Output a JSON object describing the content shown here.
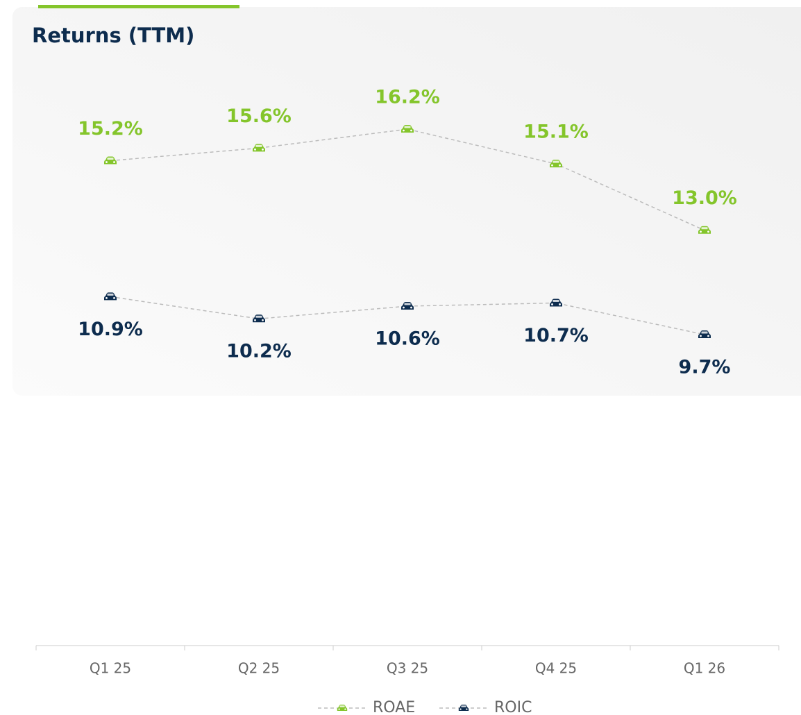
{
  "chart_data": {
    "type": "line",
    "title": "Returns (TTM)",
    "categories": [
      "Q1 25",
      "Q2 25",
      "Q3 25",
      "Q4 25",
      "Q1 26"
    ],
    "series": [
      {
        "name": "ROAE",
        "color": "#84c52b",
        "values": [
          15.2,
          15.6,
          16.2,
          15.1,
          13.0
        ],
        "value_labels": [
          "15.2%",
          "15.6%",
          "16.2%",
          "15.1%",
          "13.0%"
        ]
      },
      {
        "name": "ROIC",
        "color": "#0d2c4e",
        "values": [
          10.9,
          10.2,
          10.6,
          10.7,
          9.7
        ],
        "value_labels": [
          "10.9%",
          "10.2%",
          "10.6%",
          "10.7%",
          "9.7%"
        ]
      }
    ]
  }
}
